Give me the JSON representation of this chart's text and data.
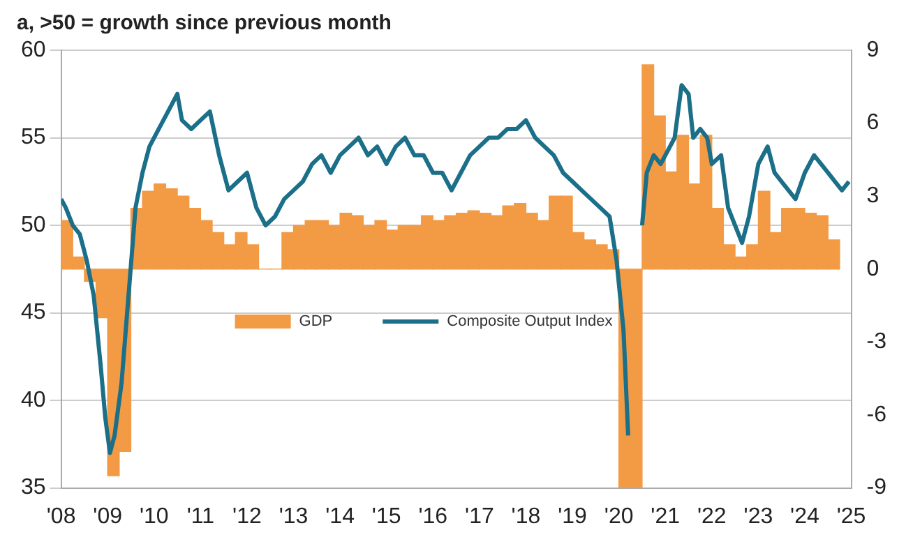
{
  "chart_data": {
    "type": "line",
    "title": "a, >50 = growth since previous month",
    "legend": "center",
    "grid": "y",
    "marker": "none",
    "xlim": [
      2008,
      2025
    ],
    "xticks": [
      {
        "value": 2008,
        "label": "'08"
      },
      {
        "value": 2009,
        "label": "'09"
      },
      {
        "value": 2010,
        "label": "'10"
      },
      {
        "value": 2011,
        "label": "'11"
      },
      {
        "value": 2012,
        "label": "'12"
      },
      {
        "value": 2013,
        "label": "'13"
      },
      {
        "value": 2014,
        "label": "'14"
      },
      {
        "value": 2015,
        "label": "'15"
      },
      {
        "value": 2016,
        "label": "'16"
      },
      {
        "value": 2017,
        "label": "'17"
      },
      {
        "value": 2018,
        "label": "'18"
      },
      {
        "value": 2019,
        "label": "'19"
      },
      {
        "value": 2020,
        "label": "'20"
      },
      {
        "value": 2021,
        "label": "'21"
      },
      {
        "value": 2022,
        "label": "'22"
      },
      {
        "value": 2023,
        "label": "'23"
      },
      {
        "value": 2024,
        "label": "'24"
      },
      {
        "value": 2025,
        "label": "'25"
      }
    ],
    "ylim": [
      35,
      60
    ],
    "yticks": [
      35,
      40,
      45,
      50,
      55,
      60
    ],
    "y2lim": [
      -9,
      9
    ],
    "y2ticks": [
      -9,
      -6,
      -3,
      0,
      3,
      6,
      9
    ],
    "series": [
      {
        "name": "GDP",
        "type": "bar",
        "axis": "y2",
        "color": "#f39a45",
        "x": [
          2008.125,
          2008.375,
          2008.625,
          2008.875,
          2009.125,
          2009.375,
          2009.625,
          2009.875,
          2010.125,
          2010.375,
          2010.625,
          2010.875,
          2011.125,
          2011.375,
          2011.625,
          2011.875,
          2012.125,
          2012.375,
          2012.625,
          2012.875,
          2013.125,
          2013.375,
          2013.625,
          2013.875,
          2014.125,
          2014.375,
          2014.625,
          2014.875,
          2015.125,
          2015.375,
          2015.625,
          2015.875,
          2016.125,
          2016.375,
          2016.625,
          2016.875,
          2017.125,
          2017.375,
          2017.625,
          2017.875,
          2018.125,
          2018.375,
          2018.625,
          2018.875,
          2019.125,
          2019.375,
          2019.625,
          2019.875,
          2020.125,
          2020.375,
          2020.625,
          2020.875,
          2021.125,
          2021.375,
          2021.625,
          2021.875,
          2022.125,
          2022.375,
          2022.625,
          2022.875,
          2023.125,
          2023.375,
          2023.625,
          2023.875,
          2024.125,
          2024.375,
          2024.625
        ],
        "values": [
          2.0,
          0.5,
          -0.5,
          -2.0,
          -8.5,
          -7.5,
          2.5,
          3.2,
          3.5,
          3.3,
          3.0,
          2.5,
          2.0,
          1.5,
          1.0,
          1.5,
          1.0,
          0.0,
          0.0,
          1.5,
          1.8,
          2.0,
          2.0,
          1.8,
          2.3,
          2.2,
          1.8,
          2.0,
          1.6,
          1.8,
          1.8,
          2.2,
          2.0,
          2.2,
          2.3,
          2.4,
          2.3,
          2.2,
          2.6,
          2.7,
          2.3,
          2.0,
          3.0,
          3.0,
          1.5,
          1.2,
          1.0,
          0.8,
          -9,
          -9,
          8.4,
          6.3,
          4.0,
          5.5,
          3.5,
          5.5,
          2.5,
          1.0,
          0.5,
          1.0,
          3.2,
          1.5,
          2.5,
          2.5,
          2.3,
          2.2,
          1.2
        ]
      },
      {
        "name": "Composite Output Index",
        "axis": "y",
        "color": "#1b6f88",
        "x": [
          2008.0,
          2008.1,
          2008.25,
          2008.4,
          2008.55,
          2008.7,
          2008.85,
          2008.95,
          2009.05,
          2009.15,
          2009.3,
          2009.45,
          2009.6,
          2009.75,
          2009.9,
          2010.1,
          2010.3,
          2010.5,
          2010.6,
          2010.8,
          2011.0,
          2011.2,
          2011.4,
          2011.6,
          2011.8,
          2012.0,
          2012.2,
          2012.4,
          2012.6,
          2012.8,
          2013.0,
          2013.2,
          2013.4,
          2013.6,
          2013.8,
          2014.0,
          2014.2,
          2014.4,
          2014.6,
          2014.8,
          2015.0,
          2015.2,
          2015.4,
          2015.6,
          2015.8,
          2016.0,
          2016.2,
          2016.4,
          2016.6,
          2016.8,
          2017.0,
          2017.2,
          2017.4,
          2017.6,
          2017.8,
          2018.0,
          2018.2,
          2018.4,
          2018.6,
          2018.8,
          2019.0,
          2019.2,
          2019.4,
          2019.6,
          2019.8,
          2019.95,
          2020.1,
          2020.2,
          2020.3,
          2020.4,
          2020.5,
          2020.6,
          2020.75,
          2020.9,
          2021.0,
          2021.2,
          2021.35,
          2021.5,
          2021.6,
          2021.75,
          2021.9,
          2022.0,
          2022.2,
          2022.35,
          2022.5,
          2022.65,
          2022.8,
          2023.0,
          2023.2,
          2023.35,
          2023.5,
          2023.65,
          2023.8,
          2024.0,
          2024.2,
          2024.35,
          2024.5,
          2024.65,
          2024.8,
          2024.95
        ],
        "values": [
          51.5,
          51.0,
          50.0,
          49.5,
          48.0,
          46.0,
          42.0,
          39.0,
          37.0,
          38.0,
          41.0,
          46.0,
          51.0,
          53.0,
          54.5,
          55.5,
          56.5,
          57.5,
          56.0,
          55.5,
          56.0,
          56.5,
          54.0,
          52.0,
          52.5,
          53.0,
          51.0,
          50.0,
          50.5,
          51.5,
          52.0,
          52.5,
          53.5,
          54.0,
          53.0,
          54.0,
          54.5,
          55.0,
          54.0,
          54.5,
          53.5,
          54.5,
          55.0,
          54.0,
          54.0,
          53.0,
          53.0,
          52.0,
          53.0,
          54.0,
          54.5,
          55.0,
          55.0,
          55.5,
          55.5,
          56.0,
          55.0,
          54.5,
          54.0,
          53.0,
          52.5,
          52.0,
          51.5,
          51.0,
          50.5,
          48.0,
          44.0,
          38.0,
          null,
          null,
          50.0,
          53.0,
          54.0,
          53.5,
          54.0,
          55.0,
          58.0,
          57.5,
          55.0,
          55.5,
          55.0,
          53.5,
          54.0,
          51.0,
          50.0,
          49.0,
          50.5,
          53.5,
          54.5,
          53.0,
          52.5,
          52.0,
          51.5,
          53.0,
          54.0,
          53.5,
          53.0,
          52.5,
          52.0,
          52.5
        ]
      }
    ]
  }
}
